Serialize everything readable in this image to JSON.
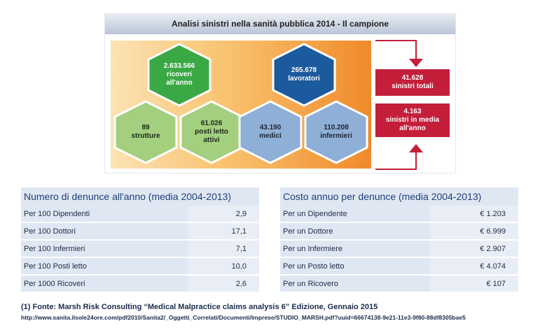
{
  "infographic": {
    "title": "Analisi sinistri nella sanità pubblica 2014 - Il campione",
    "hexagons": [
      {
        "id": "ricoveri",
        "lines": [
          "2.633.566",
          "ricoveri",
          "all'anno"
        ],
        "fill": "#3aa845",
        "text_color": "#ffffff"
      },
      {
        "id": "strutture",
        "lines": [
          "89",
          "strutture"
        ],
        "fill": "#a3cf7f",
        "text_color": "#1d2a18"
      },
      {
        "id": "posti-letto",
        "lines": [
          "61.026",
          "posti letto",
          "attivi"
        ],
        "fill": "#a3cf7f",
        "text_color": "#1d2a18"
      },
      {
        "id": "lavoratori",
        "lines": [
          "265.678",
          "lavoratori"
        ],
        "fill": "#1c5a9e",
        "text_color": "#ffffff"
      },
      {
        "id": "medici",
        "lines": [
          "43.190",
          "medici"
        ],
        "fill": "#8eafd6",
        "text_color": "#1d2433"
      },
      {
        "id": "infermieri",
        "lines": [
          "110.208",
          "infermieri"
        ],
        "fill": "#8eafd6",
        "text_color": "#1d2433"
      }
    ],
    "result_boxes": [
      {
        "id": "sinistri-totali",
        "lines": [
          "41.628",
          "sinistri totali"
        ]
      },
      {
        "id": "sinistri-media",
        "lines": [
          "4.163",
          "sinistri in media",
          "all'anno"
        ]
      }
    ],
    "colors": {
      "accent_red": "#c41e3a",
      "hex_border": "#ffffff"
    }
  },
  "table_denunce": {
    "header": "Numero di denunce all'anno (media 2004-2013)",
    "rows": [
      {
        "label": "Per 100 Dipendenti",
        "value": "2,9"
      },
      {
        "label": "Per 100 Dottori",
        "value": "17,1"
      },
      {
        "label": "Per 100 Infermieri",
        "value": "7,1"
      },
      {
        "label": "Per 100 Posti letto",
        "value": "10,0"
      },
      {
        "label": "Per 1000 Ricoveri",
        "value": "2,6"
      }
    ]
  },
  "table_costo": {
    "header": "Costo annuo per denunce (media 2004-2013)",
    "rows": [
      {
        "label": "Per un Dipendente",
        "value": "€ 1.203"
      },
      {
        "label": "Per un Dottore",
        "value": "€ 6.999"
      },
      {
        "label": "Per un Infermiere",
        "value": "€ 2.907"
      },
      {
        "label": "Per un Posto letto",
        "value": "€ 4.074"
      },
      {
        "label": "Per un Ricovero",
        "value": "€ 107"
      }
    ]
  },
  "footnote": {
    "line1": "(1)  Fonte: Marsh Risk Consulting “Medical Malpractice claims analysis 6” Edizione, Gennaio 2015",
    "line2": "http://www.sanita.ilsole24ore.com/pdf2010/Sanita2/_Oggetti_Correlati/Documenti/Imprese/STUDIO_MARSH.pdf?uuid=66674138-9e21-11e3-9f80-88df8305bae5"
  }
}
